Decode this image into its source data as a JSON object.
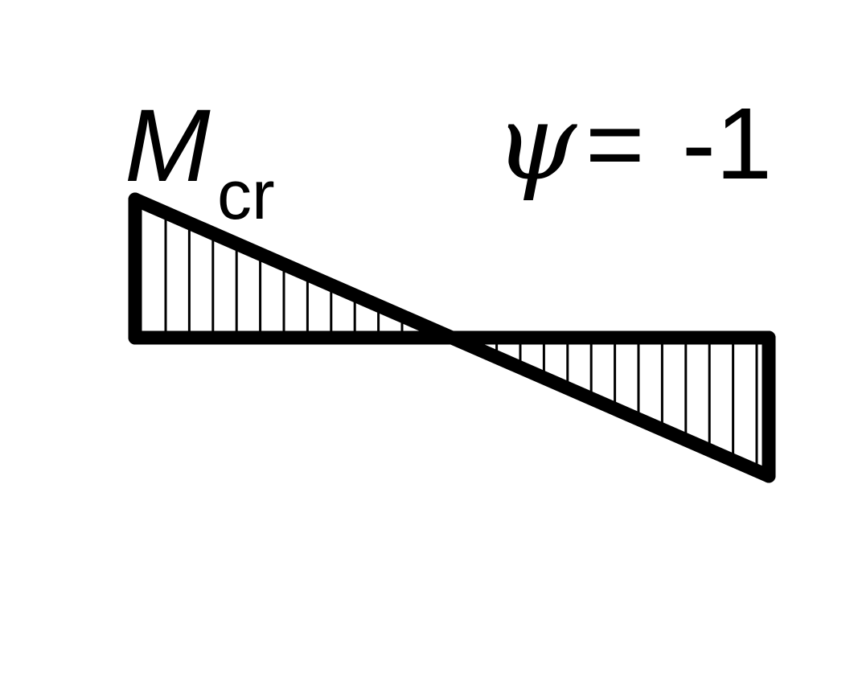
{
  "diagram": {
    "moment_symbol": "M",
    "moment_subscript": "cr",
    "ratio_symbol": "ψ",
    "ratio_equals": "=",
    "ratio_value": "-1",
    "psi": -1,
    "colors": {
      "ink": "#000000",
      "background": "#ffffff"
    }
  }
}
